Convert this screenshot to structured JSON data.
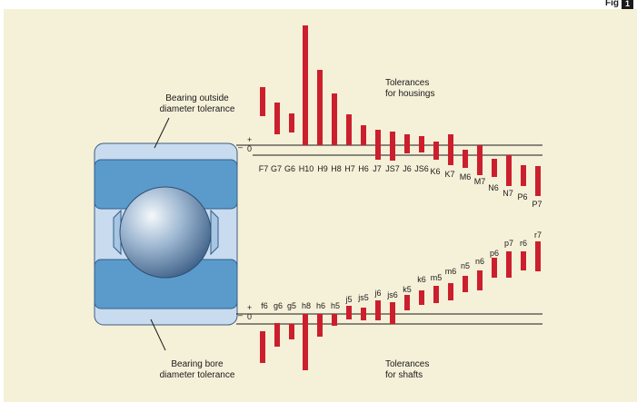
{
  "figure": {
    "word": "Fig",
    "number": "1"
  },
  "labels": {
    "bearing_outside": [
      "Bearing outside",
      "diameter tolerance"
    ],
    "bearing_bore": [
      "Bearing bore",
      "diameter tolerance"
    ],
    "housings": [
      "Tolerances",
      "for housings"
    ],
    "shafts": [
      "Tolerances",
      "for shafts"
    ],
    "plus_sign": "+",
    "zero": "0",
    "minus_sign": "–"
  },
  "colors": {
    "bar": "#cc1f2e",
    "ring_blue": "#5b9bcb",
    "ring_light": "#c9dbee",
    "background": "#f5f0d8"
  },
  "housing_tolerances": [
    {
      "code": "F7"
    },
    {
      "code": "G7"
    },
    {
      "code": "G6"
    },
    {
      "code": "H10"
    },
    {
      "code": "H9"
    },
    {
      "code": "H8"
    },
    {
      "code": "H7"
    },
    {
      "code": "H6"
    },
    {
      "code": "J7"
    },
    {
      "code": "JS7"
    },
    {
      "code": "J6"
    },
    {
      "code": "JS6"
    },
    {
      "code": "K6"
    },
    {
      "code": "K7"
    },
    {
      "code": "M6"
    },
    {
      "code": "M7"
    },
    {
      "code": "N6"
    },
    {
      "code": "N7"
    },
    {
      "code": "P6"
    },
    {
      "code": "P7"
    }
  ],
  "shaft_tolerances": [
    {
      "code": "f6"
    },
    {
      "code": "g6"
    },
    {
      "code": "g5"
    },
    {
      "code": "h8"
    },
    {
      "code": "h6"
    },
    {
      "code": "h5"
    },
    {
      "code": "j5"
    },
    {
      "code": "js5"
    },
    {
      "code": "j6"
    },
    {
      "code": "js6"
    },
    {
      "code": "k5"
    },
    {
      "code": "k6"
    },
    {
      "code": "m5"
    },
    {
      "code": "m6"
    },
    {
      "code": "n5"
    },
    {
      "code": "n6"
    },
    {
      "code": "p6"
    },
    {
      "code": "p7"
    },
    {
      "code": "r6"
    },
    {
      "code": "r7"
    }
  ]
}
